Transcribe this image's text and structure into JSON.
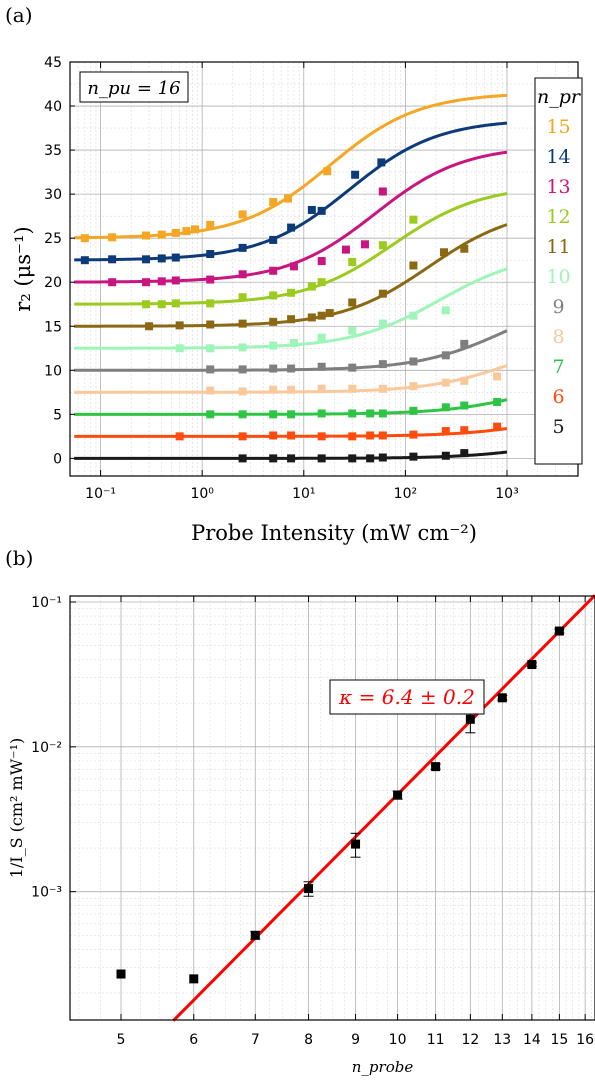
{
  "chart_data": [
    {
      "panel_label": "(a)",
      "type": "scatter",
      "xlabel": "Probe Intensity (mW cm⁻²)",
      "ylabel": "r₂ (μs⁻¹)",
      "xscale": "log",
      "xlim": [
        0.05,
        5000
      ],
      "ylim": [
        -2,
        45
      ],
      "xticks": [
        0.1,
        1,
        10,
        100,
        1000
      ],
      "xtick_labels": [
        "10⁻¹",
        "10⁰",
        "10¹",
        "10²",
        "10³"
      ],
      "yticks": [
        0,
        5,
        10,
        15,
        20,
        25,
        30,
        35,
        40,
        45
      ],
      "grid": true,
      "annotation": "n_pu = 16",
      "legend_title": "n_pr",
      "legend_placement": "right",
      "series": [
        {
          "name": "15",
          "color": "#F5A623",
          "offset": 25.0,
          "amp": 16.5,
          "isat": 18,
          "points": [
            [
              0.07,
              25.0
            ],
            [
              0.13,
              25.1
            ],
            [
              0.28,
              25.3
            ],
            [
              0.4,
              25.4
            ],
            [
              0.55,
              25.6
            ],
            [
              0.7,
              25.8
            ],
            [
              0.85,
              26.0
            ],
            [
              1.2,
              26.5
            ],
            [
              2.5,
              27.7
            ],
            [
              5,
              29.1
            ],
            [
              7,
              29.5
            ],
            [
              17,
              32.6
            ]
          ]
        },
        {
          "name": "14",
          "color": "#0D3B7A",
          "offset": 22.5,
          "amp": 16.0,
          "isat": 28,
          "points": [
            [
              0.07,
              22.5
            ],
            [
              0.13,
              22.6
            ],
            [
              0.28,
              22.6
            ],
            [
              0.4,
              22.7
            ],
            [
              0.55,
              22.8
            ],
            [
              1.2,
              23.2
            ],
            [
              2.5,
              23.9
            ],
            [
              5,
              24.8
            ],
            [
              7.5,
              26.2
            ],
            [
              12,
              28.2
            ],
            [
              15,
              28.1
            ],
            [
              32,
              32.2
            ],
            [
              58,
              33.6
            ]
          ]
        },
        {
          "name": "13",
          "color": "#C8157F",
          "offset": 20.0,
          "amp": 15.5,
          "isat": 50,
          "points": [
            [
              0.13,
              20.0
            ],
            [
              0.28,
              20.0
            ],
            [
              0.4,
              20.1
            ],
            [
              0.55,
              20.2
            ],
            [
              1.2,
              20.3
            ],
            [
              2.5,
              20.9
            ],
            [
              5,
              21.3
            ],
            [
              8,
              21.8
            ],
            [
              15,
              22.4
            ],
            [
              26,
              23.7
            ],
            [
              40,
              24.3
            ],
            [
              60,
              30.3
            ]
          ]
        },
        {
          "name": "12",
          "color": "#9BCB1E",
          "offset": 17.5,
          "amp": 13.5,
          "isat": 75,
          "points": [
            [
              0.28,
              17.5
            ],
            [
              0.4,
              17.5
            ],
            [
              0.55,
              17.6
            ],
            [
              1.2,
              17.6
            ],
            [
              2.5,
              18.3
            ],
            [
              5,
              18.5
            ],
            [
              7.5,
              18.8
            ],
            [
              12,
              19.5
            ],
            [
              15,
              20.0
            ],
            [
              30,
              22.3
            ],
            [
              60,
              24.2
            ],
            [
              120,
              27.1
            ]
          ]
        },
        {
          "name": "11",
          "color": "#8B6914",
          "offset": 15.0,
          "amp": 13.5,
          "isat": 170,
          "points": [
            [
              0.3,
              15.0
            ],
            [
              0.6,
              15.1
            ],
            [
              1.2,
              15.2
            ],
            [
              2.5,
              15.3
            ],
            [
              5,
              15.5
            ],
            [
              7.5,
              15.8
            ],
            [
              12,
              16.0
            ],
            [
              15,
              16.2
            ],
            [
              18,
              16.5
            ],
            [
              30,
              17.7
            ],
            [
              60,
              18.7
            ],
            [
              120,
              21.9
            ],
            [
              240,
              23.4
            ],
            [
              380,
              23.8
            ]
          ]
        },
        {
          "name": "10",
          "color": "#9EF5B8",
          "offset": 12.5,
          "amp": 11.0,
          "isat": 220,
          "points": [
            [
              0.6,
              12.5
            ],
            [
              1.2,
              12.5
            ],
            [
              2.5,
              12.6
            ],
            [
              5,
              12.8
            ],
            [
              8,
              13.1
            ],
            [
              15,
              13.7
            ],
            [
              30,
              14.5
            ],
            [
              60,
              15.3
            ],
            [
              120,
              16.2
            ],
            [
              250,
              16.8
            ]
          ]
        },
        {
          "name": "9",
          "color": "#7F7F7F",
          "offset": 10.0,
          "amp": 9.0,
          "isat": 1000,
          "points": [
            [
              1.2,
              10.1
            ],
            [
              2.5,
              10.1
            ],
            [
              5,
              10.2
            ],
            [
              7.5,
              10.2
            ],
            [
              15,
              10.4
            ],
            [
              30,
              10.3
            ],
            [
              60,
              10.7
            ],
            [
              120,
              11.0
            ],
            [
              250,
              11.7
            ],
            [
              380,
              13.0
            ]
          ]
        },
        {
          "name": "8",
          "color": "#F9C89B",
          "offset": 7.5,
          "amp": 7.0,
          "isat": 1300,
          "points": [
            [
              1.2,
              7.7
            ],
            [
              2.5,
              7.6
            ],
            [
              5,
              7.8
            ],
            [
              7.5,
              7.8
            ],
            [
              15,
              7.9
            ],
            [
              30,
              7.9
            ],
            [
              60,
              7.9
            ],
            [
              120,
              8.2
            ],
            [
              250,
              8.6
            ],
            [
              380,
              8.8
            ],
            [
              800,
              9.3
            ]
          ]
        },
        {
          "name": "7",
          "color": "#2EC545",
          "offset": 5.0,
          "amp": 5.0,
          "isat": 2000,
          "points": [
            [
              1.2,
              5.0
            ],
            [
              2.5,
              5.0
            ],
            [
              5,
              5.0
            ],
            [
              7.5,
              5.0
            ],
            [
              15,
              5.1
            ],
            [
              30,
              5.1
            ],
            [
              45,
              5.1
            ],
            [
              60,
              5.1
            ],
            [
              120,
              5.4
            ],
            [
              250,
              5.8
            ],
            [
              380,
              6.0
            ],
            [
              800,
              6.4
            ]
          ]
        },
        {
          "name": "6",
          "color": "#FF4B0C",
          "offset": 2.5,
          "amp": 4.0,
          "isat": 3500,
          "points": [
            [
              0.6,
              2.5
            ],
            [
              2.5,
              2.5
            ],
            [
              5,
              2.6
            ],
            [
              7.5,
              2.6
            ],
            [
              15,
              2.5
            ],
            [
              30,
              2.5
            ],
            [
              45,
              2.6
            ],
            [
              60,
              2.6
            ],
            [
              120,
              2.7
            ],
            [
              250,
              3.1
            ],
            [
              380,
              3.2
            ],
            [
              800,
              3.6
            ]
          ]
        },
        {
          "name": "5",
          "color": "#1A1A1A",
          "offset": 0.0,
          "amp": 4.0,
          "isat": 4500,
          "points": [
            [
              2.5,
              0.0
            ],
            [
              5,
              0.0
            ],
            [
              7.5,
              0.0
            ],
            [
              15,
              0.0
            ],
            [
              30,
              0.0
            ],
            [
              45,
              0.0
            ],
            [
              60,
              0.1
            ],
            [
              120,
              0.2
            ],
            [
              250,
              0.3
            ],
            [
              380,
              0.6
            ]
          ]
        }
      ]
    },
    {
      "panel_label": "(b)",
      "type": "scatter",
      "xlabel": "n_probe",
      "ylabel": "1/I_S (cm² mW⁻¹)",
      "yscale": "log",
      "xscale": "log",
      "xlim": [
        4.4,
        16.4
      ],
      "ylim": [
        0.00013,
        0.11
      ],
      "xticks": [
        5,
        6,
        7,
        8,
        9,
        10,
        11,
        12,
        13,
        14,
        15,
        16
      ],
      "yticks": [
        0.001,
        0.01,
        0.1
      ],
      "ytick_labels": [
        "10⁻³",
        "10⁻²",
        "10⁻¹"
      ],
      "grid": true,
      "points": [
        {
          "x": 5,
          "y": 0.00027,
          "err": 0
        },
        {
          "x": 6,
          "y": 0.00025,
          "err": 0
        },
        {
          "x": 7,
          "y": 0.0005,
          "err": 3e-05
        },
        {
          "x": 8,
          "y": 0.00105,
          "err": 0.00012
        },
        {
          "x": 9,
          "y": 0.00213,
          "err": 0.0004
        },
        {
          "x": 10,
          "y": 0.00465,
          "err": 0.0003
        },
        {
          "x": 11,
          "y": 0.0073,
          "err": 0.0003
        },
        {
          "x": 12,
          "y": 0.0155,
          "err": 0.003
        },
        {
          "x": 13,
          "y": 0.0218,
          "err": 0.0008
        },
        {
          "x": 14,
          "y": 0.037,
          "err": 0.001
        },
        {
          "x": 15,
          "y": 0.063,
          "err": 0.002
        }
      ],
      "fit": {
        "color": "#FF0000",
        "kappa": 6.4,
        "y_at_16": 0.095,
        "label": "κ = 6.4 ± 0.2"
      }
    }
  ]
}
